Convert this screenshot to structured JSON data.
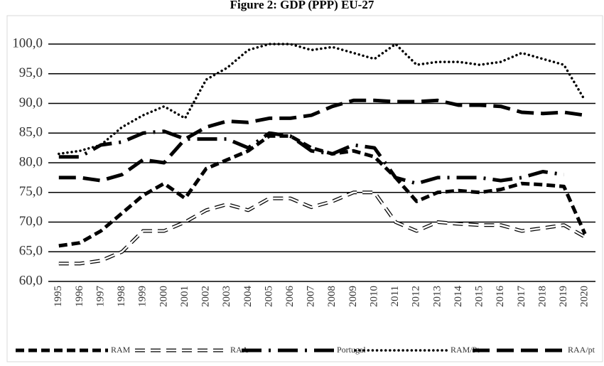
{
  "chart_data": {
    "type": "line",
    "title": "Figure 2: GDP (PPP) EU-27",
    "categories": [
      "1995",
      "1996",
      "1997",
      "1998",
      "1999",
      "2000",
      "2001",
      "2002",
      "2003",
      "2004",
      "2005",
      "2006",
      "2007",
      "2008",
      "2009",
      "2010",
      "2011",
      "2012",
      "2013",
      "2014",
      "2015",
      "2016",
      "2017",
      "2018",
      "2019",
      "2020"
    ],
    "ylim": [
      60,
      100
    ],
    "yticks": [
      {
        "value": 60,
        "label": "60,0"
      },
      {
        "value": 65,
        "label": "65,0"
      },
      {
        "value": 70,
        "label": "70,0"
      },
      {
        "value": 75,
        "label": "75,0"
      },
      {
        "value": 80,
        "label": "80,0"
      },
      {
        "value": 85,
        "label": "85,0"
      },
      {
        "value": 90,
        "label": "90,0"
      },
      {
        "value": 95,
        "label": "95,0"
      },
      {
        "value": 100,
        "label": "100,0"
      }
    ],
    "grid": true,
    "legend": "bottom",
    "series": [
      {
        "name": "RAM",
        "color": "#000000",
        "style": "short-dash",
        "values": [
          66,
          66.5,
          68.5,
          71.5,
          74.5,
          76.5,
          74,
          79,
          80.5,
          82,
          84.5,
          84.5,
          82.5,
          81.5,
          82,
          81,
          77.5,
          73.5,
          75,
          75.3,
          75,
          75.5,
          76.5,
          76.3,
          76,
          68
        ]
      },
      {
        "name": "RAA",
        "color": "#000000",
        "style": "hollow-dash",
        "values": [
          63,
          63,
          63.5,
          65,
          68.5,
          68.5,
          70,
          72,
          73,
          72,
          74,
          74,
          72.5,
          73.5,
          75,
          75,
          70,
          68.5,
          70,
          69.7,
          69.5,
          69.5,
          68.5,
          69,
          69.5,
          67.5
        ]
      },
      {
        "name": "Portugal",
        "color": "#000000",
        "style": "dash-dot",
        "values": [
          81,
          81,
          83,
          83.5,
          85,
          85.3,
          84,
          84,
          84,
          82.5,
          85,
          84.5,
          82,
          81.5,
          83,
          82.5,
          77.5,
          76.5,
          77.5,
          77.5,
          77.5,
          77,
          77.5,
          78.5,
          78,
          null
        ]
      },
      {
        "name": "RAM/Pt",
        "color": "#000000",
        "style": "dotted",
        "values": [
          81.5,
          82,
          83,
          86,
          88,
          89.5,
          87.5,
          94,
          96,
          99,
          100,
          100,
          99,
          99.5,
          98.5,
          97.5,
          100,
          96.5,
          97,
          97,
          96.5,
          97,
          98.5,
          97.5,
          96.5,
          90.5
        ]
      },
      {
        "name": "RAA/pt",
        "color": "#000000",
        "style": "long-dash",
        "values": [
          77.5,
          77.5,
          77,
          78,
          80.5,
          80,
          84,
          86,
          87,
          86.8,
          87.5,
          87.5,
          88,
          89.5,
          90.5,
          90.5,
          90.3,
          90.3,
          90.5,
          89.7,
          89.7,
          89.5,
          88.5,
          88.3,
          88.5,
          88
        ]
      }
    ]
  }
}
